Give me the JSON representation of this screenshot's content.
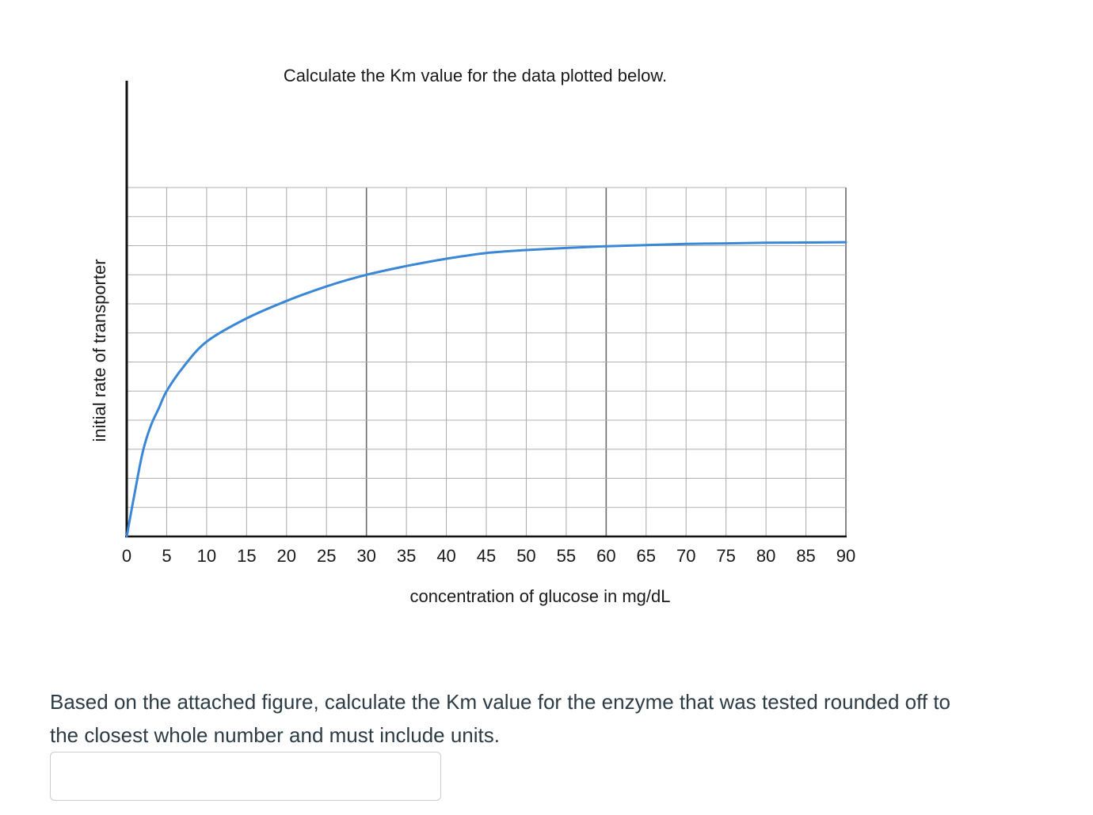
{
  "chart_data": {
    "type": "line",
    "title": "Calculate the Km value for the data plotted below.",
    "xlabel": "concentration of glucose in mg/dL",
    "ylabel": "initial rate of transporter",
    "xlim": [
      0,
      90
    ],
    "ylim": [
      0,
      12
    ],
    "x_ticks": [
      "0",
      "5",
      "10",
      "15",
      "20",
      "25",
      "30",
      "35",
      "40",
      "45",
      "50",
      "55",
      "60",
      "65",
      "70",
      "75",
      "80",
      "85",
      "90"
    ],
    "grid": true,
    "legend": "none",
    "series": [
      {
        "color": "#3a87d8",
        "x": [
          0,
          1,
          2,
          3,
          4,
          5,
          7,
          10,
          15,
          20,
          25,
          30,
          35,
          40,
          45,
          50,
          55,
          60,
          65,
          70,
          75,
          80,
          85,
          90
        ],
        "y": [
          0,
          1.5,
          2.9,
          3.8,
          4.4,
          5.0,
          5.8,
          6.7,
          7.5,
          8.1,
          8.6,
          9.0,
          9.3,
          9.55,
          9.75,
          9.85,
          9.92,
          9.98,
          10.02,
          10.06,
          10.08,
          10.1,
          10.11,
          10.12
        ]
      }
    ]
  },
  "question": {
    "text": "Based on the attached figure, calculate the Km value for the enzyme that was tested rounded off to the closest whole number and must include units."
  },
  "answer": {
    "value": ""
  }
}
